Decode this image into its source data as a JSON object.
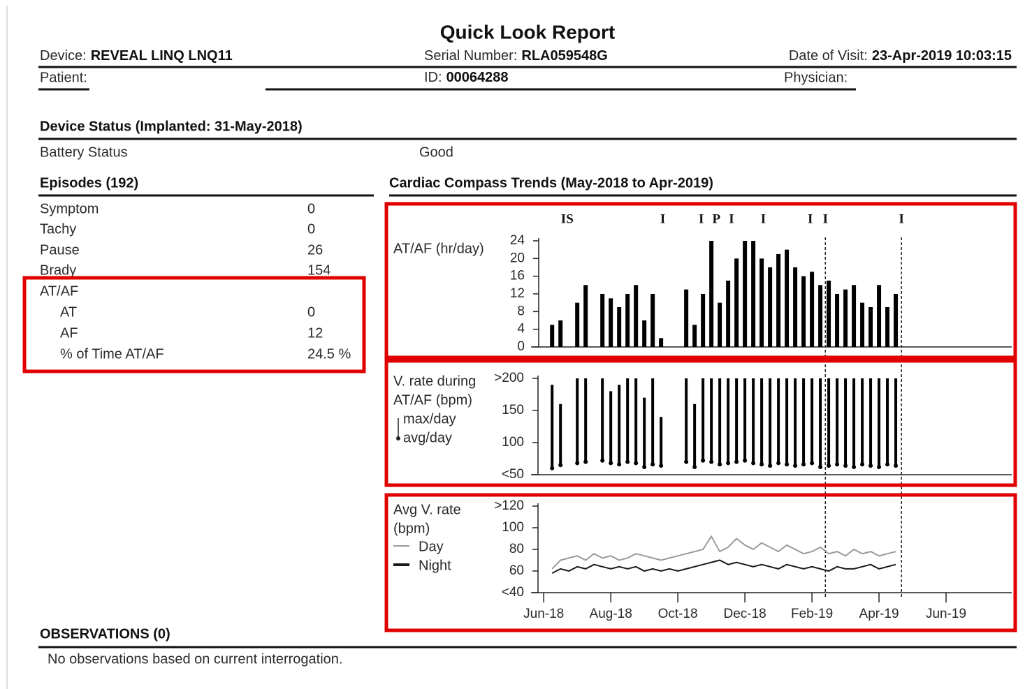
{
  "header": {
    "title": "Quick Look Report",
    "device": {
      "label": "Device:",
      "value": "REVEAL LINQ LNQ11"
    },
    "serial": {
      "label": "Serial Number:",
      "value": "RLA059548G"
    },
    "visit": {
      "label": "Date of Visit:",
      "value": "23-Apr-2019 10:03:15"
    },
    "patient": {
      "label": "Patient:"
    },
    "id": {
      "label": "ID:",
      "value": "00064288"
    },
    "physician": {
      "label": "Physician:"
    }
  },
  "device_status": {
    "title": "Device Status (Implanted: 31-May-2018)",
    "battery_label": "Battery Status",
    "battery_value": "Good"
  },
  "episodes": {
    "title": "Episodes (192)",
    "rows": [
      [
        "Symptom",
        0
      ],
      [
        "Tachy",
        0
      ],
      [
        "Pause",
        26
      ],
      [
        "Brady",
        154
      ],
      [
        "AT/AF"
      ],
      [
        "AT",
        0
      ],
      [
        "AF",
        12
      ],
      [
        "% of Time AT/AF",
        "24.5 %"
      ]
    ]
  },
  "trends_title": "Cardiac Compass Trends (May-2018 to Apr-2019)",
  "observations": {
    "title": "OBSERVATIONS (0)",
    "text": "No observations based on current interrogation."
  },
  "chart_data": [
    {
      "type": "bar",
      "y_label": [
        "AT/AF (hr/day)"
      ],
      "x": [
        0.25,
        0.5,
        0.75,
        1,
        1.25,
        1.5,
        1.75,
        2,
        2.25,
        2.5,
        2.75,
        3,
        3.25,
        3.5,
        3.75,
        4,
        4.25,
        4.5,
        4.75,
        5,
        5.25,
        5.5,
        5.75,
        6,
        6.25,
        6.5,
        6.75,
        7,
        7.25,
        7.5,
        7.75,
        8,
        8.25,
        8.5,
        8.75,
        9,
        9.25,
        9.5,
        9.75,
        10,
        10.25,
        10.5
      ],
      "values": [
        5,
        6,
        0,
        10,
        14,
        0,
        12,
        11,
        9,
        12,
        14,
        6,
        12,
        2,
        0,
        0,
        13,
        5,
        12,
        24,
        10,
        15,
        20,
        24,
        24,
        20,
        18,
        21,
        22,
        18,
        16,
        17,
        14,
        15,
        12,
        13,
        14,
        10,
        9,
        14,
        9,
        12
      ],
      "color": "#000000",
      "xlim": [
        -0.4,
        14
      ],
      "ylim": [
        0,
        24
      ],
      "yticks": [
        0,
        4,
        8,
        12,
        16,
        20,
        24
      ],
      "annotations": [
        {
          "text": "IS",
          "x": 0.7
        },
        {
          "text": "I",
          "x": 3.55
        },
        {
          "text": "I",
          "x": 4.7
        },
        {
          "text": "P",
          "x": 5.15
        },
        {
          "text": "I",
          "x": 5.6
        },
        {
          "text": "I",
          "x": 6.55
        },
        {
          "text": "I",
          "x": 7.95
        },
        {
          "text": "I",
          "x": 8.4
        },
        {
          "text": "I",
          "x": 10.67
        }
      ],
      "markers_x": [
        8.4,
        10.67
      ]
    },
    {
      "type": "range",
      "y_label": [
        "V. rate during",
        "AT/AF (bpm)"
      ],
      "x": [
        0.25,
        0.5,
        0.75,
        1,
        1.25,
        1.5,
        1.75,
        2,
        2.25,
        2.5,
        2.75,
        3,
        3.25,
        3.5,
        3.75,
        4,
        4.25,
        4.5,
        4.75,
        5,
        5.25,
        5.5,
        5.75,
        6,
        6.25,
        6.5,
        6.75,
        7,
        7.25,
        7.5,
        7.75,
        8,
        8.25,
        8.5,
        8.75,
        9,
        9.25,
        9.5,
        9.75,
        10,
        10.25,
        10.5
      ],
      "series": [
        {
          "name": "max/day",
          "color": "#000000",
          "values": [
            190,
            160,
            null,
            200,
            200,
            null,
            200,
            180,
            190,
            200,
            200,
            170,
            200,
            140,
            null,
            null,
            200,
            160,
            200,
            200,
            200,
            200,
            200,
            200,
            200,
            200,
            200,
            200,
            200,
            200,
            200,
            200,
            200,
            200,
            200,
            200,
            200,
            200,
            200,
            200,
            200,
            200
          ]
        },
        {
          "name": "avg/day",
          "color": "#000000",
          "values": [
            60,
            65,
            null,
            68,
            70,
            null,
            72,
            68,
            66,
            70,
            68,
            62,
            66,
            64,
            null,
            null,
            70,
            62,
            72,
            70,
            66,
            68,
            70,
            72,
            68,
            66,
            64,
            68,
            66,
            64,
            66,
            68,
            62,
            64,
            66,
            64,
            62,
            66,
            64,
            62,
            66,
            64
          ]
        }
      ],
      "xlim": [
        -0.4,
        14
      ],
      "ylim": [
        50,
        200
      ],
      "yticks": [
        {
          "value": 50,
          "label": "<50"
        },
        100,
        150,
        {
          "value": 200,
          "label": ">200"
        }
      ]
    },
    {
      "type": "line",
      "y_label": [
        "Avg V. rate",
        "(bpm)"
      ],
      "x": [
        0.25,
        0.5,
        0.75,
        1,
        1.25,
        1.5,
        1.75,
        2,
        2.25,
        2.5,
        2.75,
        3,
        3.25,
        3.5,
        3.75,
        4,
        4.25,
        4.5,
        4.75,
        5,
        5.25,
        5.5,
        5.75,
        6,
        6.25,
        6.5,
        6.75,
        7,
        7.25,
        7.5,
        7.75,
        8,
        8.25,
        8.5,
        8.75,
        9,
        9.25,
        9.5,
        9.75,
        10,
        10.25,
        10.5
      ],
      "series": [
        {
          "name": "Day",
          "color": "#9a9a9a",
          "values": [
            62,
            70,
            72,
            74,
            70,
            76,
            72,
            74,
            70,
            72,
            76,
            74,
            72,
            70,
            72,
            74,
            76,
            78,
            80,
            92,
            78,
            82,
            90,
            84,
            80,
            86,
            82,
            78,
            84,
            80,
            76,
            78,
            82,
            76,
            78,
            74,
            80,
            76,
            78,
            74,
            76,
            78
          ]
        },
        {
          "name": "Night",
          "color": "#1a1a1a",
          "values": [
            58,
            62,
            60,
            64,
            62,
            66,
            64,
            62,
            64,
            62,
            64,
            60,
            62,
            60,
            62,
            60,
            62,
            64,
            66,
            68,
            70,
            66,
            68,
            66,
            64,
            66,
            64,
            62,
            66,
            64,
            62,
            64,
            62,
            60,
            64,
            62,
            62,
            64,
            66,
            62,
            64,
            66
          ]
        }
      ],
      "xlim": [
        -0.4,
        14
      ],
      "xticks": [
        {
          "value": 0,
          "label": "Jun-18"
        },
        {
          "value": 2,
          "label": "Aug-18"
        },
        {
          "value": 4,
          "label": "Oct-18"
        },
        {
          "value": 6,
          "label": "Dec-18"
        },
        {
          "value": 8,
          "label": "Feb-19"
        },
        {
          "value": 10,
          "label": "Apr-19"
        },
        {
          "value": 12,
          "label": "Jun-19"
        }
      ],
      "ylim": [
        40,
        120
      ],
      "yticks": [
        {
          "value": 40,
          "label": "<40"
        },
        60,
        80,
        100,
        {
          "value": 120,
          "label": ">120"
        }
      ]
    }
  ]
}
